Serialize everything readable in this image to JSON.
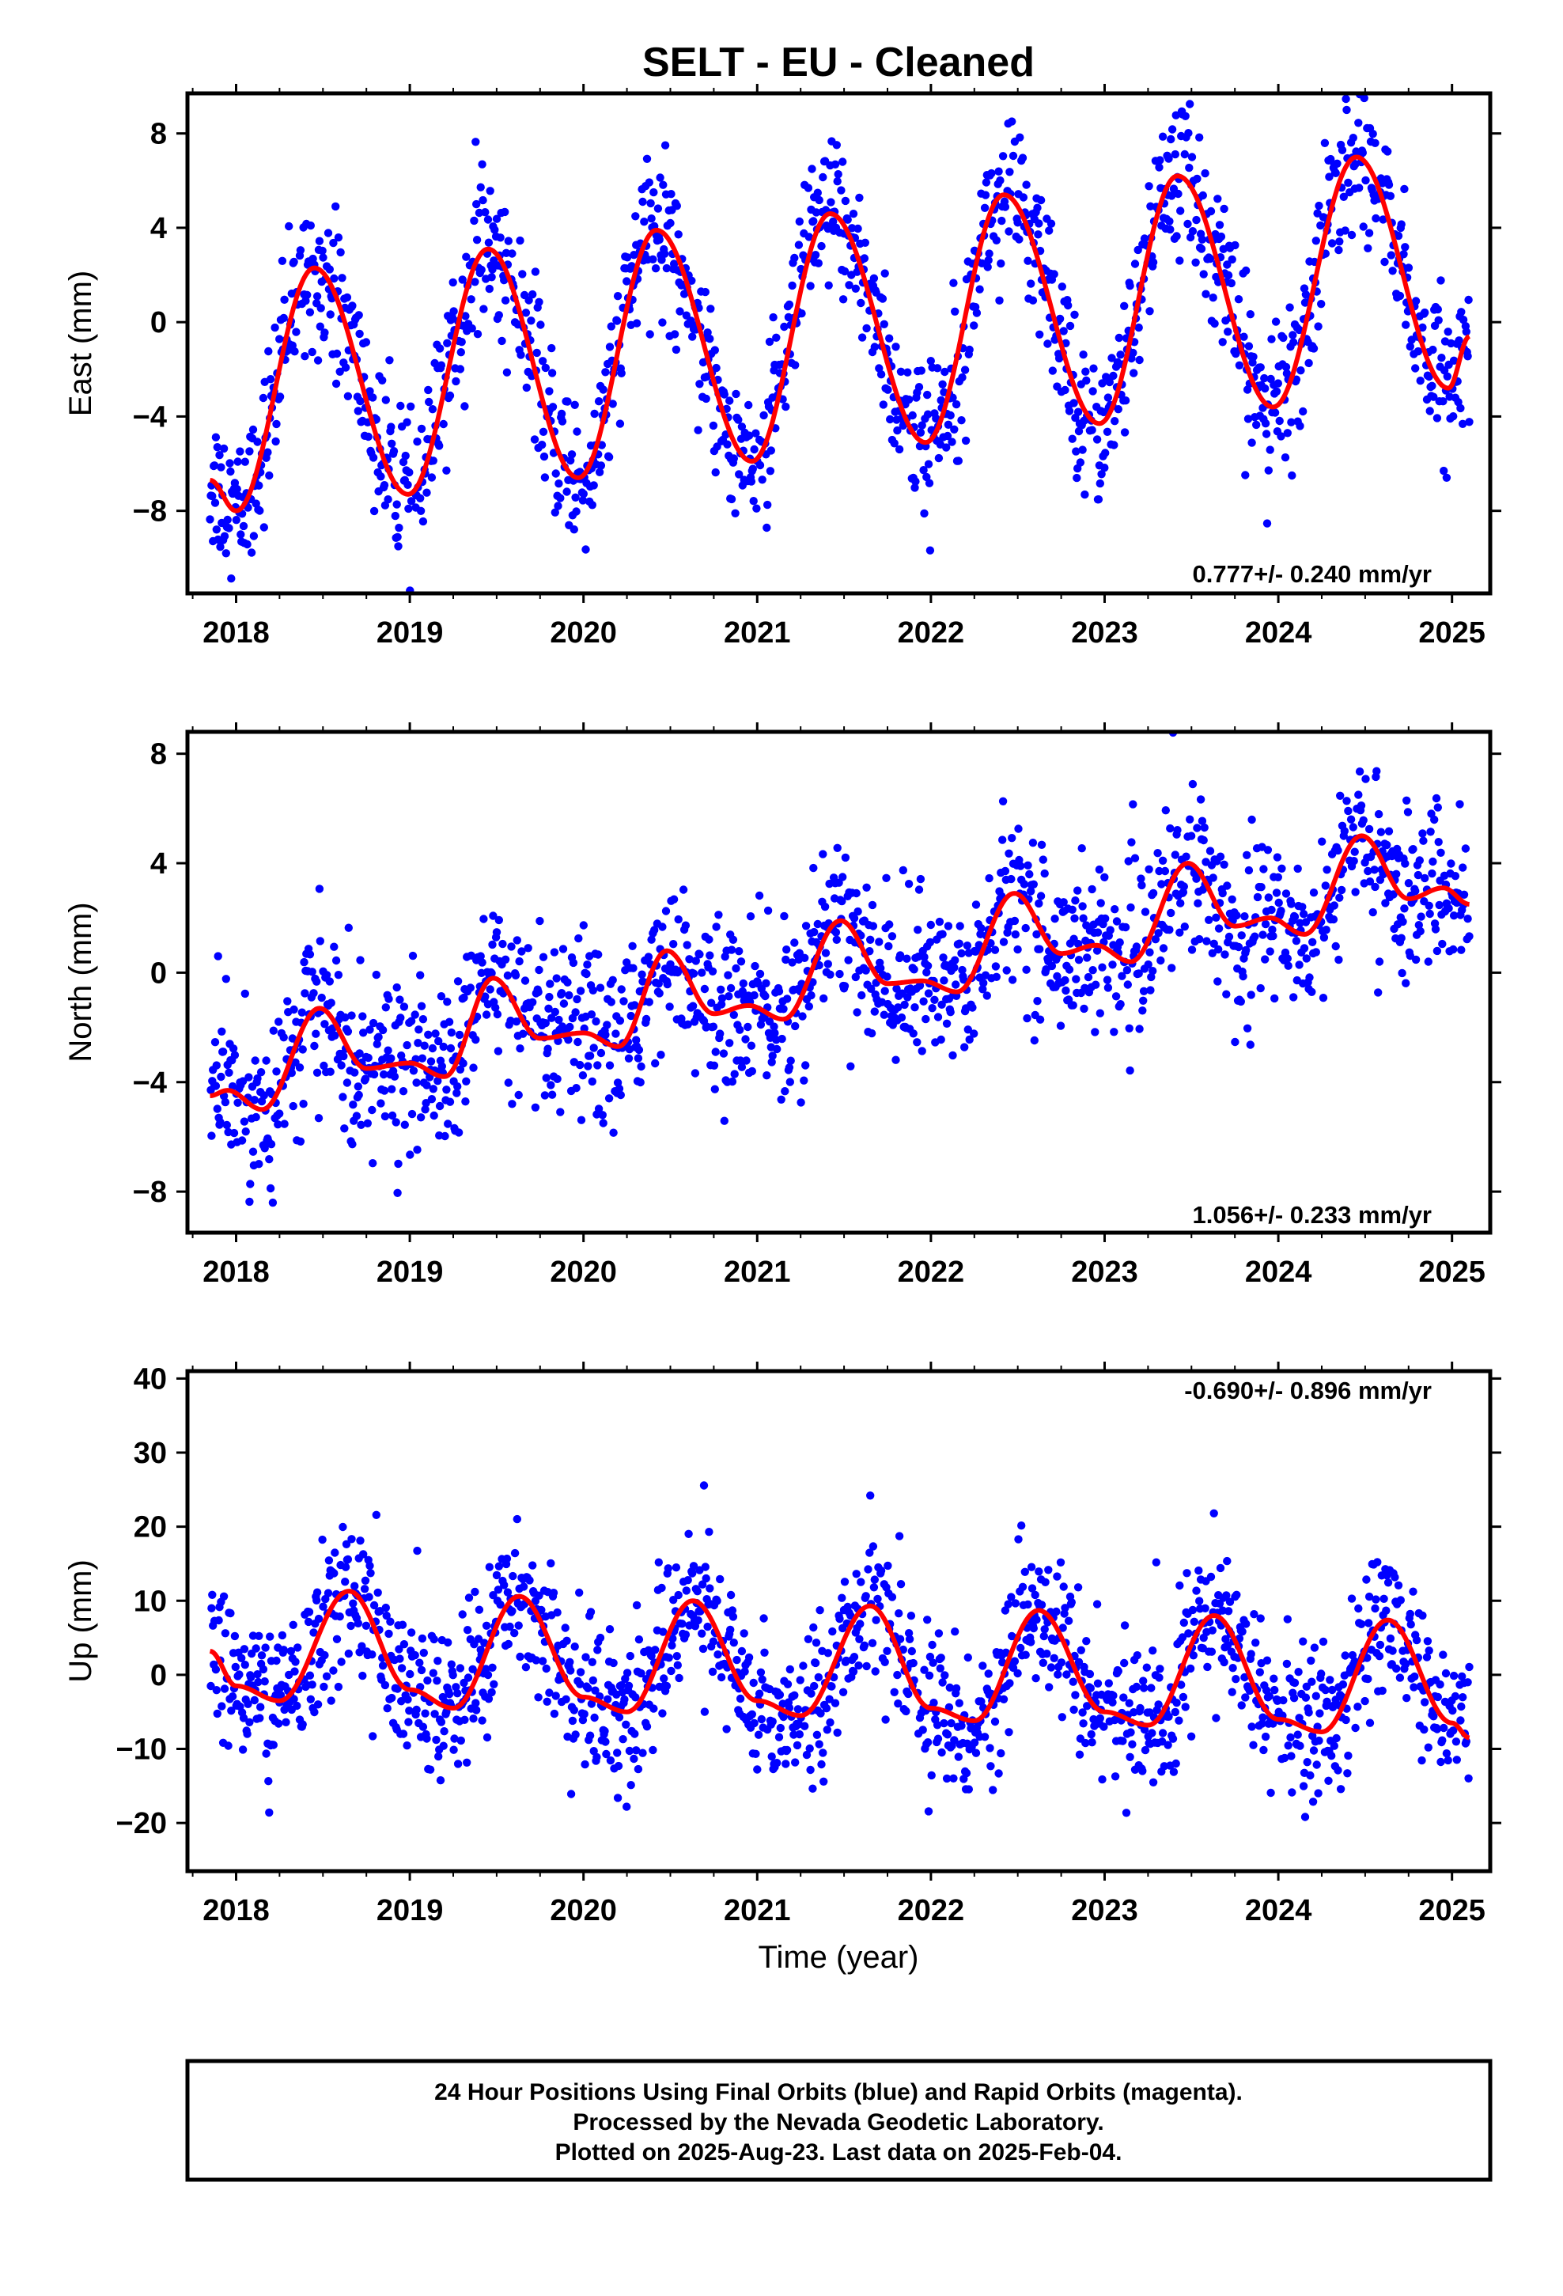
{
  "title": "SELT  - EU - Cleaned",
  "xlabel": "Time (year)",
  "footer": {
    "line1": "24 Hour Positions Using Final Orbits (blue) and Rapid Orbits (magenta).",
    "line2": "Processed by the Nevada Geodetic Laboratory.",
    "line3": "Plotted on 2025-Aug-23. Last data on 2025-Feb-04."
  },
  "colors": {
    "points": "#0000ff",
    "model": "#ff0000",
    "frame": "#000000"
  },
  "chart_data": [
    {
      "type": "scatter",
      "ylabel": "East (mm)",
      "rate_label": "0.777+/- 0.240 mm/yr",
      "xlim": [
        2017.72,
        2025.22
      ],
      "ylim": [
        -11.5,
        9.7
      ],
      "xticks": [
        2018,
        2019,
        2020,
        2021,
        2022,
        2023,
        2024,
        2025
      ],
      "yticks": [
        -8,
        -4,
        0,
        4,
        8
      ],
      "series": [
        {
          "values_model": {
            "x_start": 2017.85,
            "x_end": 2025.1,
            "trend_mm_per_yr": 0.777,
            "seasonal": [
              [
                2017.85,
                -6.7
              ],
              [
                2018.0,
                -8.0
              ],
              [
                2018.45,
                2.3
              ],
              [
                2018.99,
                -7.3
              ],
              [
                2019.45,
                3.1
              ],
              [
                2019.97,
                -6.6
              ],
              [
                2020.42,
                3.9
              ],
              [
                2020.97,
                -5.9
              ],
              [
                2021.42,
                4.6
              ],
              [
                2021.97,
                -5.1
              ],
              [
                2022.42,
                5.4
              ],
              [
                2022.97,
                -4.3
              ],
              [
                2023.42,
                6.2
              ],
              [
                2023.97,
                -3.6
              ],
              [
                2024.45,
                7.0
              ],
              [
                2024.98,
                -2.8
              ],
              [
                2025.1,
                -0.6
              ]
            ]
          },
          "scatter_spread_mm": 1.6
        }
      ]
    },
    {
      "type": "scatter",
      "ylabel": "North (mm)",
      "rate_label": "1.056+/- 0.233 mm/yr",
      "xlim": [
        2017.72,
        2025.22
      ],
      "ylim": [
        -9.5,
        8.8
      ],
      "xticks": [
        2018,
        2019,
        2020,
        2021,
        2022,
        2023,
        2024,
        2025
      ],
      "yticks": [
        -8,
        -4,
        0,
        4,
        8
      ],
      "series": [
        {
          "values_model": {
            "x_start": 2017.85,
            "x_end": 2025.1,
            "trend_mm_per_yr": 1.056,
            "seasonal": [
              [
                2017.85,
                -4.5
              ],
              [
                2017.95,
                -4.3
              ],
              [
                2018.15,
                -5.0
              ],
              [
                2018.48,
                -1.3
              ],
              [
                2018.75,
                -3.5
              ],
              [
                2019.0,
                -3.3
              ],
              [
                2019.2,
                -3.8
              ],
              [
                2019.48,
                -0.2
              ],
              [
                2019.75,
                -2.4
              ],
              [
                2020.0,
                -2.2
              ],
              [
                2020.2,
                -2.7
              ],
              [
                2020.48,
                0.8
              ],
              [
                2020.75,
                -1.5
              ],
              [
                2020.95,
                -1.2
              ],
              [
                2021.15,
                -1.7
              ],
              [
                2021.48,
                1.9
              ],
              [
                2021.75,
                -0.4
              ],
              [
                2021.95,
                -0.3
              ],
              [
                2022.15,
                -0.7
              ],
              [
                2022.48,
                2.9
              ],
              [
                2022.75,
                0.7
              ],
              [
                2022.95,
                1.0
              ],
              [
                2023.15,
                0.4
              ],
              [
                2023.48,
                4.0
              ],
              [
                2023.75,
                1.7
              ],
              [
                2023.95,
                2.0
              ],
              [
                2024.15,
                1.4
              ],
              [
                2024.48,
                5.0
              ],
              [
                2024.75,
                2.7
              ],
              [
                2024.95,
                3.1
              ],
              [
                2025.1,
                2.5
              ]
            ]
          },
          "scatter_spread_mm": 1.5
        }
      ]
    },
    {
      "type": "scatter",
      "ylabel": "Up (mm)",
      "rate_label": "-0.690+/- 0.896 mm/yr",
      "xlim": [
        2017.72,
        2025.22
      ],
      "ylim": [
        -26.5,
        41
      ],
      "xticks": [
        2018,
        2019,
        2020,
        2021,
        2022,
        2023,
        2024,
        2025
      ],
      "yticks": [
        -20,
        -10,
        0,
        10,
        20,
        30,
        40
      ],
      "series": [
        {
          "values_model": {
            "x_start": 2017.85,
            "x_end": 2025.1,
            "trend_mm_per_yr": -0.69,
            "seasonal": [
              [
                2017.85,
                3.2
              ],
              [
                2018.0,
                -1.5
              ],
              [
                2018.25,
                -3.5
              ],
              [
                2018.65,
                11.3
              ],
              [
                2019.0,
                -2.0
              ],
              [
                2019.25,
                -4.5
              ],
              [
                2019.63,
                10.6
              ],
              [
                2020.0,
                -3.0
              ],
              [
                2020.25,
                -5.0
              ],
              [
                2020.63,
                10.0
              ],
              [
                2021.0,
                -3.5
              ],
              [
                2021.25,
                -5.5
              ],
              [
                2021.65,
                9.3
              ],
              [
                2022.0,
                -4.5
              ],
              [
                2022.25,
                -6.2
              ],
              [
                2022.62,
                8.7
              ],
              [
                2023.0,
                -5.0
              ],
              [
                2023.25,
                -6.8
              ],
              [
                2023.63,
                8.0
              ],
              [
                2024.0,
                -6.0
              ],
              [
                2024.25,
                -7.7
              ],
              [
                2024.63,
                7.4
              ],
              [
                2025.0,
                -6.5
              ],
              [
                2025.1,
                -8.5
              ]
            ]
          },
          "scatter_spread_mm": 5.0
        }
      ]
    }
  ]
}
